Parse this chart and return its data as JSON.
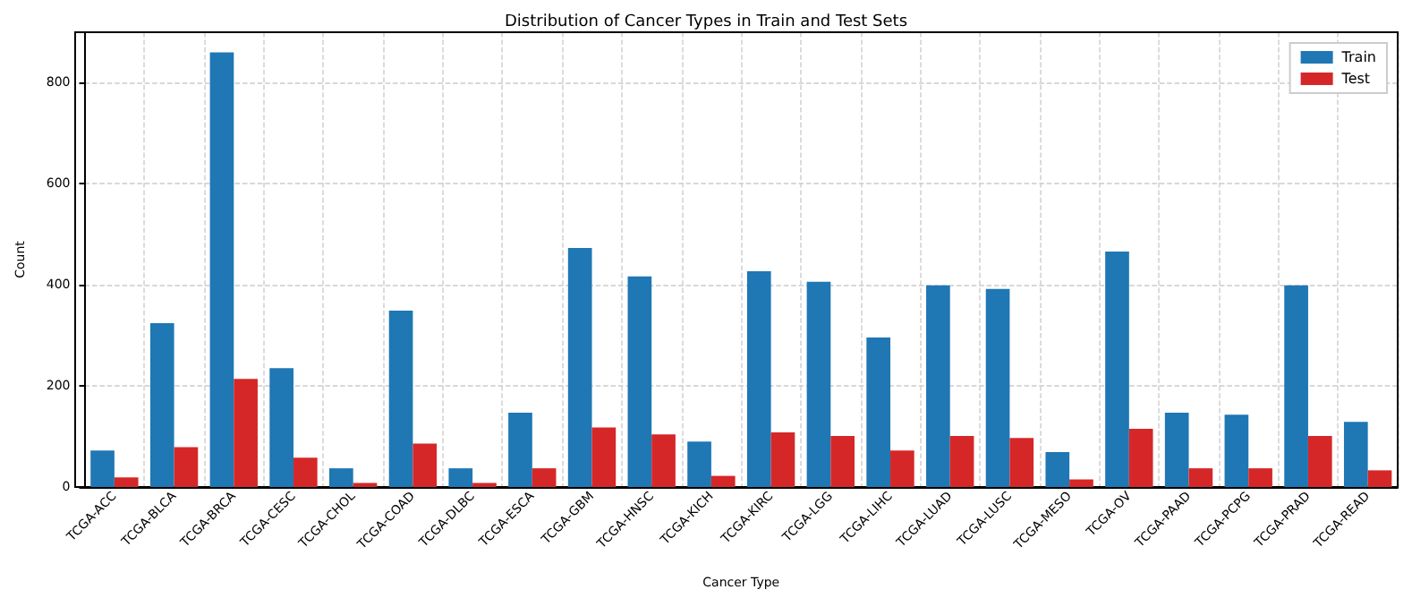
{
  "chart_data": {
    "type": "bar",
    "title": "Distribution of Cancer Types in Train and Test Sets",
    "xlabel": "Cancer Type",
    "ylabel": "Count",
    "categories": [
      "TCGA-ACC",
      "TCGA-BLCA",
      "TCGA-BRCA",
      "TCGA-CESC",
      "TCGA-CHOL",
      "TCGA-COAD",
      "TCGA-DLBC",
      "TCGA-ESCA",
      "TCGA-GBM",
      "TCGA-HNSC",
      "TCGA-KICH",
      "TCGA-KIRC",
      "TCGA-LGG",
      "TCGA-LIHC",
      "TCGA-LUAD",
      "TCGA-LUSC",
      "TCGA-MESO",
      "TCGA-OV",
      "TCGA-PAAD",
      "TCGA-PCPG",
      "TCGA-PRAD",
      "TCGA-READ"
    ],
    "series": [
      {
        "name": "Train",
        "color": "#1f77b4",
        "values": [
          72,
          324,
          860,
          235,
          37,
          349,
          37,
          147,
          473,
          417,
          90,
          427,
          406,
          296,
          399,
          392,
          69,
          466,
          147,
          143,
          399,
          129
        ]
      },
      {
        "name": "Test",
        "color": "#d62728",
        "values": [
          19,
          79,
          214,
          58,
          8,
          86,
          8,
          37,
          118,
          104,
          22,
          108,
          101,
          72,
          101,
          97,
          15,
          115,
          37,
          37,
          101,
          33
        ]
      }
    ],
    "ylim": [
      0,
      900
    ],
    "yticks": [
      0,
      200,
      400,
      600,
      800
    ],
    "grid": true,
    "legend": "top right"
  }
}
